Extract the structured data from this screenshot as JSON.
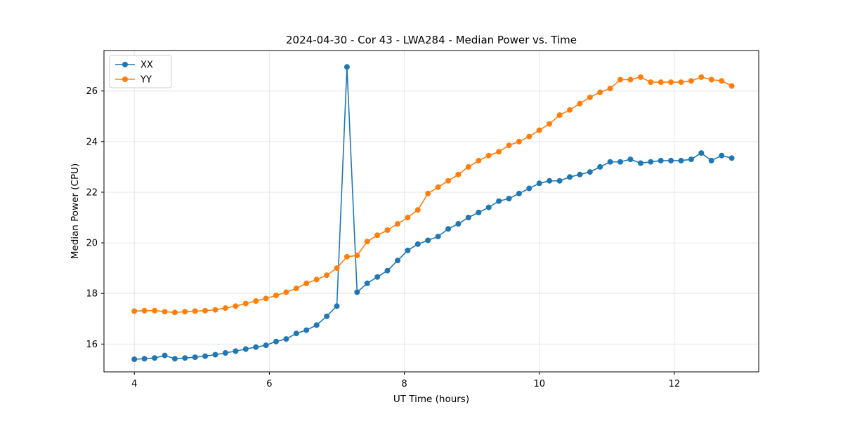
{
  "figure": {
    "title": "2024-04-30 - Cor 43 - LWA284 - Median Power vs. Time"
  },
  "chart_data": {
    "type": "line",
    "title": "2024-04-30 - Cor 43 - LWA284 - Median Power vs. Time",
    "xlabel": "UT Time (hours)",
    "ylabel": "Median Power (CPU)",
    "xlim": [
      3.55,
      13.25
    ],
    "ylim": [
      14.9,
      27.6
    ],
    "xticks": [
      4,
      6,
      8,
      10,
      12
    ],
    "yticks": [
      16,
      18,
      20,
      22,
      24,
      26
    ],
    "grid": true,
    "grid_color": "#e6e6e6",
    "legend_position": "upper left",
    "colors": {
      "XX": "#1f77b4",
      "YY": "#ff7f0e"
    },
    "x": [
      4,
      4.15,
      4.3,
      4.45,
      4.6,
      4.75,
      4.9,
      5.05,
      5.2,
      5.35,
      5.5,
      5.65,
      5.8,
      5.95,
      6.1,
      6.25,
      6.4,
      6.55,
      6.7,
      6.85,
      7,
      7.15,
      7.3,
      7.45,
      7.6,
      7.75,
      7.9,
      8.05,
      8.2,
      8.35,
      8.5,
      8.65,
      8.8,
      8.95,
      9.1,
      9.25,
      9.4,
      9.55,
      9.7,
      9.85,
      10,
      10.15,
      10.3,
      10.45,
      10.6,
      10.75,
      10.9,
      11.05,
      11.2,
      11.35,
      11.5,
      11.65,
      11.8,
      11.95,
      12.1,
      12.25,
      12.4,
      12.55,
      12.7,
      12.85
    ],
    "series": [
      {
        "name": "XX",
        "values": [
          15.4,
          15.42,
          15.45,
          15.55,
          15.42,
          15.45,
          15.48,
          15.52,
          15.58,
          15.65,
          15.72,
          15.8,
          15.88,
          15.95,
          16.1,
          16.2,
          16.42,
          16.55,
          16.75,
          17.1,
          17.5,
          26.95,
          18.05,
          18.4,
          18.65,
          18.9,
          19.3,
          19.7,
          19.95,
          20.1,
          20.25,
          20.55,
          20.75,
          21.0,
          21.2,
          21.4,
          21.65,
          21.75,
          21.95,
          22.15,
          22.35,
          22.45,
          22.45,
          22.6,
          22.7,
          22.8,
          23.0,
          23.2,
          23.2,
          23.3,
          23.15,
          23.2,
          23.25,
          23.25,
          23.25,
          23.3,
          23.55,
          23.25,
          23.45,
          23.35
        ]
      },
      {
        "name": "YY",
        "values": [
          17.3,
          17.32,
          17.32,
          17.28,
          17.25,
          17.28,
          17.3,
          17.32,
          17.35,
          17.42,
          17.5,
          17.6,
          17.7,
          17.8,
          17.92,
          18.05,
          18.2,
          18.4,
          18.55,
          18.72,
          19.0,
          19.45,
          19.5,
          20.05,
          20.3,
          20.5,
          20.75,
          21.0,
          21.3,
          21.95,
          22.2,
          22.45,
          22.7,
          23.0,
          23.25,
          23.45,
          23.6,
          23.85,
          24.0,
          24.2,
          24.45,
          24.7,
          25.05,
          25.25,
          25.5,
          25.75,
          25.95,
          26.1,
          26.45,
          26.45,
          26.55,
          26.35,
          26.35,
          26.35,
          26.35,
          26.4,
          26.55,
          26.45,
          26.4,
          26.2
        ]
      }
    ]
  }
}
